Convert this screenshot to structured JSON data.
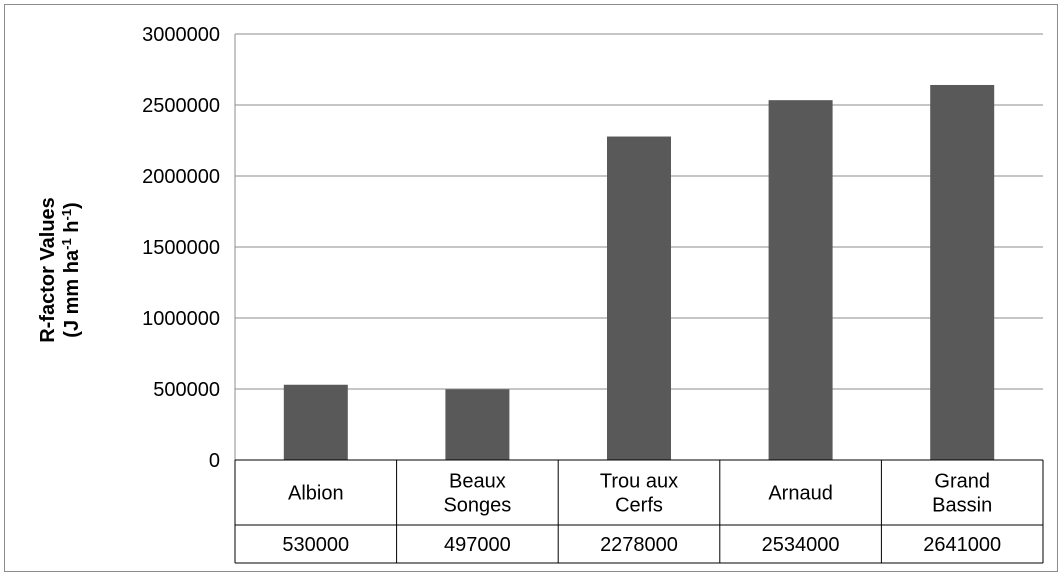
{
  "chart_data": {
    "type": "bar",
    "categories": [
      [
        "Albion"
      ],
      [
        "Beaux",
        "Songes"
      ],
      [
        "Trou aux",
        "Cerfs"
      ],
      [
        "Arnaud"
      ],
      [
        "Grand",
        "Bassin"
      ]
    ],
    "values": [
      530000,
      497000,
      2278000,
      2534000,
      2641000
    ],
    "value_labels": [
      "530000",
      "497000",
      "2278000",
      "2534000",
      "2641000"
    ],
    "ylim": [
      0,
      3000000
    ],
    "yticks": [
      0,
      500000,
      1000000,
      1500000,
      2000000,
      2500000,
      3000000
    ],
    "ytick_labels": [
      "0",
      "500000",
      "1000000",
      "1500000",
      "2000000",
      "2500000",
      "3000000"
    ],
    "ylabel_line1": "R-factor Values",
    "ylabel_line2_parts": [
      "(J mm ha",
      "-1",
      " h",
      "-1",
      ")"
    ],
    "xlabel": "",
    "title": "",
    "grid": true,
    "legend": "none",
    "data_table": true,
    "bar_color": "#595959",
    "grid_color": "#8c8c8c"
  }
}
